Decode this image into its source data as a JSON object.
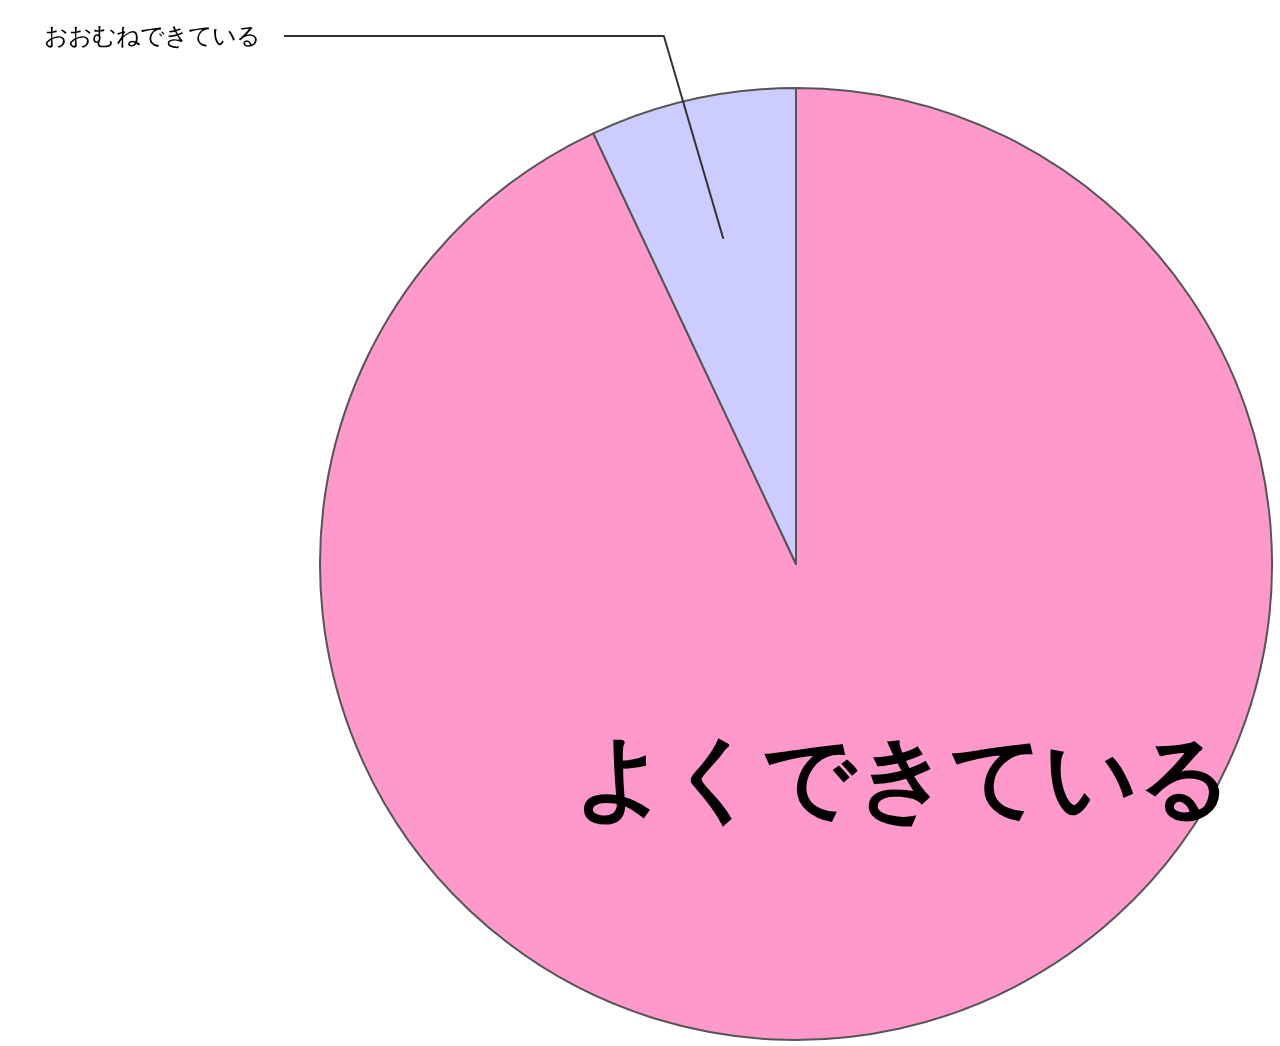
{
  "chart_data": {
    "type": "pie",
    "categories": [
      "よくできている",
      "おおむねできている"
    ],
    "values": [
      93,
      7
    ],
    "colors": [
      "#ff99cc",
      "#ccccff"
    ]
  }
}
